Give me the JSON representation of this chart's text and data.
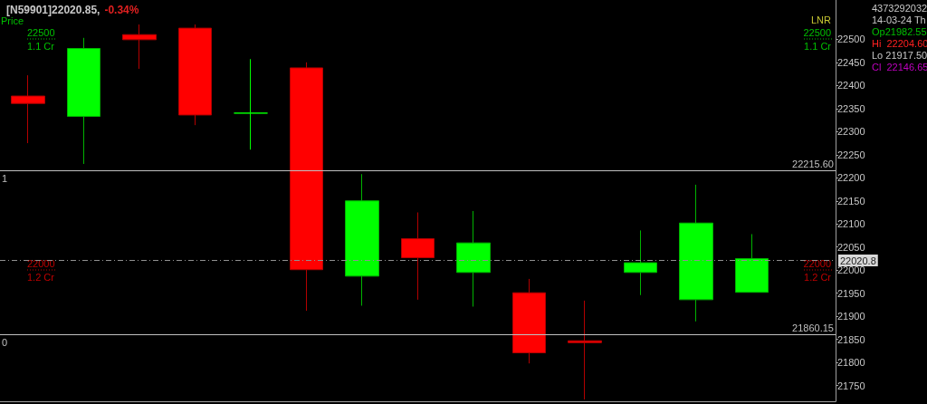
{
  "chart_data": {
    "type": "candlestick",
    "title": "[N59901]22020.85,",
    "subtitle": "-0.34%",
    "categories": [
      null,
      null,
      null,
      null,
      null,
      null,
      null,
      null,
      null,
      null,
      null,
      null,
      null,
      null,
      null
    ],
    "ohlc": [
      [
        22377,
        22422,
        22275,
        22361
      ],
      [
        22333,
        22503,
        22230,
        22480
      ],
      [
        22510,
        22532,
        22436,
        22499
      ],
      [
        22524,
        22532,
        22314,
        22336
      ],
      [
        22340,
        22457,
        22261,
        22340
      ],
      [
        22438,
        22450,
        21912,
        22001
      ],
      [
        21987,
        22208,
        21923,
        22150
      ],
      [
        22068,
        22125,
        21936,
        22027
      ],
      [
        21995,
        22128,
        21921,
        22059
      ],
      [
        21951,
        21981,
        21798,
        21821
      ],
      [
        21847,
        21934,
        21720,
        21843
      ],
      [
        21995,
        22086,
        21946,
        22016
      ],
      [
        21936,
        22185,
        21889,
        22102
      ],
      [
        21952,
        22078,
        21952,
        22025
      ],
      null
    ],
    "colors": [
      "#ff0000",
      "#00ff00",
      "#ff0000",
      "#ff0000",
      "#00ff00",
      "#ff0000",
      "#00ff00",
      "#ff0000",
      "#00ff00",
      "#ff0000",
      "#ff0000",
      "#00ff00",
      "#00ff00",
      "#00ff00",
      null
    ],
    "ylim": [
      21716,
      22585
    ],
    "yticks": [
      21750,
      21800,
      21850,
      21900,
      21950,
      22000,
      22050,
      22100,
      22150,
      22200,
      22250,
      22300,
      22350,
      22400,
      22450,
      22500
    ],
    "grid": false,
    "ref_lines": [
      {
        "axis": "y",
        "value": 22215.6,
        "label": "22215.60",
        "color": "#c0c0c0",
        "line_style": "solid"
      },
      {
        "axis": "y",
        "value": 21860.15,
        "label": "21860.15",
        "color": "#c0c0c0",
        "line_style": "solid"
      },
      {
        "axis": "y",
        "value": 22020.85,
        "label": "22020.8",
        "color": "#909090",
        "line_style": "dashed"
      }
    ],
    "annotations": [
      "Price",
      "22500",
      "1.1 Cr",
      "22000",
      "1.2 Cr",
      "LNR",
      "22500",
      "1.1 Cr",
      "22000",
      "1.2 Cr",
      {
        "text": "1",
        "y": 22215.6
      },
      {
        "text": "0",
        "y": 21860.15
      },
      "4373292032",
      "14-03-24 Th",
      "Op21982.55",
      "Hi  22204.60",
      "Lo 21917.50",
      "Cl  22146.65"
    ]
  }
}
